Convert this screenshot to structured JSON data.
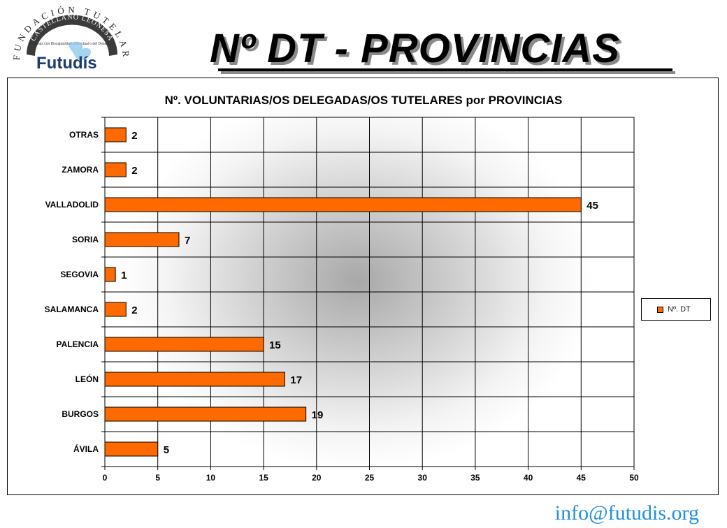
{
  "header": {
    "title": "Nº DT - PROVINCIAS",
    "logo": {
      "arc_text": "FUNDACIÓN TUTELAR",
      "band_text": "CASTELLANO LEONESA",
      "sub_text": "Personas con Discapacidad Intelectual o del Desarrollo",
      "brand": "Futudís"
    }
  },
  "footer": {
    "email": "info@futudis.org"
  },
  "colors": {
    "bar": "#ff6a00",
    "email": "#1e8fe0"
  },
  "chart_data": {
    "type": "bar",
    "orientation": "horizontal",
    "title": "Nº. VOLUNTARIAS/OS DELEGADAS/OS TUTELARES por PROVINCIAS",
    "categories": [
      "ÁVILA",
      "BURGOS",
      "LEÓN",
      "PALENCIA",
      "SALAMANCA",
      "SEGOVIA",
      "SORIA",
      "VALLADOLID",
      "ZAMORA",
      "OTRAS"
    ],
    "series": [
      {
        "name": "Nº. DT",
        "values": [
          5,
          19,
          17,
          15,
          2,
          1,
          7,
          45,
          2,
          2
        ]
      }
    ],
    "xlim": [
      0,
      50
    ],
    "xticks": [
      0,
      5,
      10,
      15,
      20,
      25,
      30,
      35,
      40,
      45,
      50
    ],
    "grid": true,
    "legend": "right"
  }
}
